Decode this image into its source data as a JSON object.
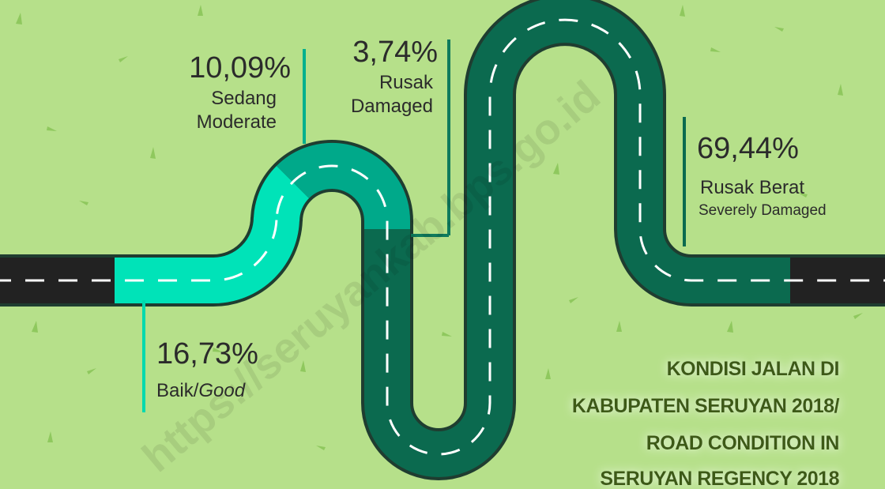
{
  "title": [
    "KONDISI JALAN DI",
    "KABUPATEN SERUYAN 2018/",
    "ROAD CONDITION IN",
    "SERUYAN REGENCY 2018"
  ],
  "items": [
    {
      "value": "16,73%",
      "label": "Baik/",
      "label_en": "Good"
    },
    {
      "value": "10,09%",
      "label": "Sedang",
      "label_en": "Moderate"
    },
    {
      "value": "3,74%",
      "label": "Rusak",
      "label_en": "Damaged"
    },
    {
      "value": "69,44%",
      "label": "Rusak Berat",
      "label_en": "Severely Damaged"
    }
  ],
  "watermark": "https://seruyankab.bps.go.id"
}
